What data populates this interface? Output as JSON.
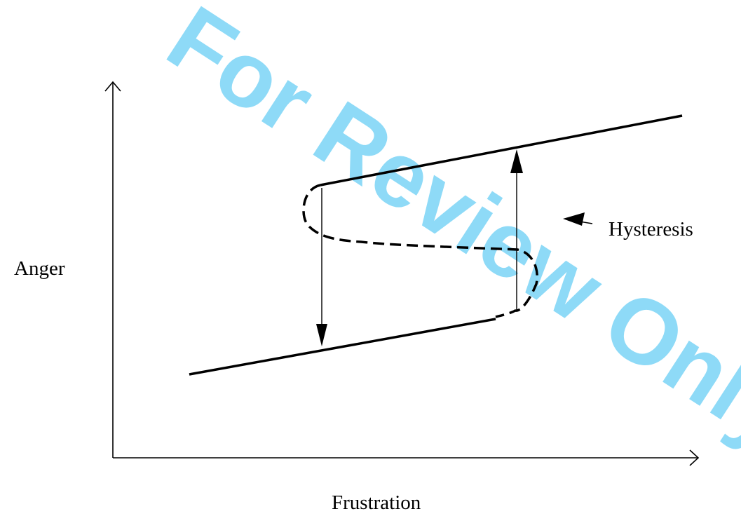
{
  "labels": {
    "y_axis": "Anger",
    "x_axis": "Frustration",
    "annotation": "Hysteresis"
  },
  "watermark": {
    "text": "For Review Only"
  },
  "colors": {
    "ink": "#000000",
    "watermark": "#33bdf2",
    "background": "#ffffff"
  }
}
